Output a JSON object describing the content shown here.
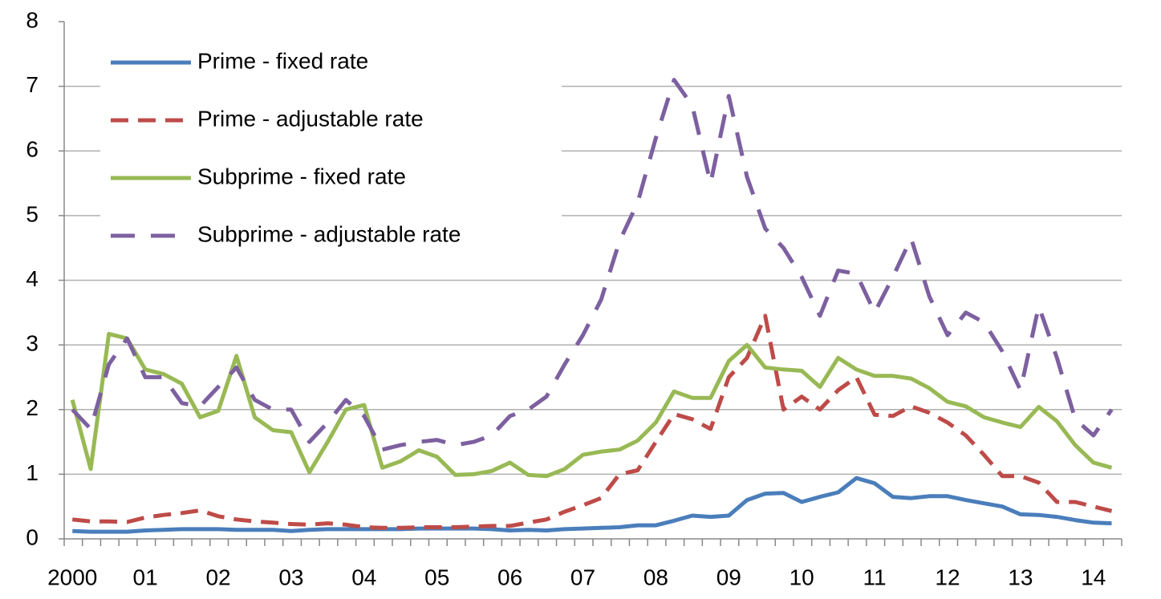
{
  "chart_data": {
    "type": "line",
    "categories": [
      "2000",
      null,
      null,
      null,
      "01",
      null,
      null,
      null,
      "02",
      null,
      null,
      null,
      "03",
      null,
      null,
      null,
      "04",
      null,
      null,
      null,
      "05",
      null,
      null,
      null,
      "06",
      null,
      null,
      null,
      "07",
      null,
      null,
      null,
      "08",
      null,
      null,
      null,
      "09",
      null,
      null,
      null,
      "10",
      null,
      null,
      null,
      "11",
      null,
      null,
      null,
      "12",
      null,
      null,
      null,
      "13",
      null,
      null,
      null,
      "14",
      null
    ],
    "series": [
      {
        "name": "Prime - fixed rate",
        "color": "#4a7ebb",
        "dash": "solid",
        "values": [
          0.12,
          0.11,
          0.11,
          0.11,
          0.13,
          0.14,
          0.15,
          0.15,
          0.15,
          0.14,
          0.14,
          0.14,
          0.12,
          0.14,
          0.15,
          0.15,
          0.15,
          0.15,
          0.15,
          0.16,
          0.16,
          0.16,
          0.16,
          0.15,
          0.13,
          0.14,
          0.13,
          0.15,
          0.16,
          0.17,
          0.18,
          0.21,
          0.21,
          0.28,
          0.36,
          0.34,
          0.36,
          0.6,
          0.7,
          0.71,
          0.57,
          0.65,
          0.72,
          0.94,
          0.86,
          0.65,
          0.63,
          0.66,
          0.66,
          0.6,
          0.55,
          0.5,
          0.38,
          0.37,
          0.34,
          0.29,
          0.25,
          0.24
        ]
      },
      {
        "name": "Prime - adjustable rate",
        "color": "#be4b48",
        "dash": "dashed",
        "values": [
          0.3,
          0.27,
          0.27,
          0.26,
          0.33,
          0.37,
          0.4,
          0.44,
          0.35,
          0.3,
          0.27,
          0.25,
          0.23,
          0.22,
          0.24,
          0.22,
          0.18,
          0.17,
          0.17,
          0.18,
          0.18,
          0.18,
          0.19,
          0.2,
          0.2,
          0.25,
          0.3,
          0.42,
          0.52,
          0.63,
          1.0,
          1.06,
          1.5,
          1.93,
          1.85,
          1.7,
          2.5,
          2.8,
          3.45,
          2.0,
          2.2,
          2.0,
          2.3,
          2.5,
          1.92,
          1.9,
          2.05,
          1.95,
          1.8,
          1.6,
          1.3,
          0.97,
          0.97,
          0.87,
          0.57,
          0.57,
          0.5,
          0.43
        ]
      },
      {
        "name": "Subprime - fixed rate",
        "color": "#98b954",
        "dash": "solid",
        "values": [
          2.15,
          1.08,
          3.17,
          3.1,
          2.62,
          2.55,
          2.4,
          1.88,
          1.98,
          2.83,
          1.88,
          1.68,
          1.65,
          1.03,
          1.5,
          2.0,
          2.07,
          1.1,
          1.2,
          1.37,
          1.27,
          0.99,
          1.0,
          1.05,
          1.18,
          0.99,
          0.97,
          1.08,
          1.3,
          1.35,
          1.38,
          1.52,
          1.8,
          2.28,
          2.18,
          2.18,
          2.75,
          3.0,
          2.65,
          2.62,
          2.6,
          2.35,
          2.8,
          2.62,
          2.52,
          2.52,
          2.48,
          2.33,
          2.12,
          2.05,
          1.88,
          1.8,
          1.73,
          2.04,
          1.82,
          1.45,
          1.18,
          1.1
        ]
      },
      {
        "name": "Subprime - adjustable rate",
        "color": "#7d60a0",
        "dash": "longdash",
        "values": [
          2.0,
          1.7,
          2.7,
          3.1,
          2.5,
          2.5,
          2.1,
          2.05,
          2.35,
          2.65,
          2.15,
          2.0,
          2.0,
          1.5,
          1.8,
          2.15,
          1.9,
          1.38,
          1.45,
          1.5,
          1.53,
          1.45,
          1.5,
          1.6,
          1.9,
          2.0,
          2.2,
          2.7,
          3.15,
          3.7,
          4.6,
          5.2,
          6.2,
          7.1,
          6.7,
          5.5,
          6.85,
          5.6,
          4.8,
          4.5,
          4.05,
          3.45,
          4.15,
          4.1,
          3.5,
          4.05,
          4.65,
          3.75,
          3.15,
          3.5,
          3.35,
          2.9,
          2.3,
          3.6,
          2.8,
          1.85,
          1.6,
          2.0
        ]
      }
    ],
    "ylim": [
      0,
      8
    ],
    "yticks": [
      0,
      1,
      2,
      3,
      4,
      5,
      6,
      7,
      8
    ],
    "grid": true,
    "legend": "top-left"
  }
}
